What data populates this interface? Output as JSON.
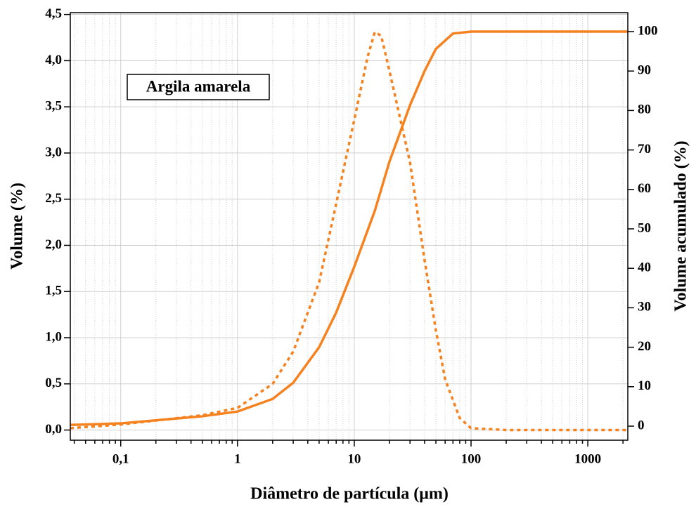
{
  "chart_data": {
    "type": "line",
    "xlabel": "Diâmetro de partícula (μm)",
    "ylabel": "Volume (%)",
    "y2label": "Volume acumulado (%)",
    "annotation": "Argila amarela",
    "log_x": true,
    "grid": true,
    "xlim": [
      0.037,
      2200
    ],
    "xticks": [
      {
        "value": 0.1,
        "label": "0,1"
      },
      1,
      10,
      100,
      1000
    ],
    "ylim": [
      -0.11,
      4.52
    ],
    "yticks": [
      {
        "value": 0,
        "label": "0,0"
      },
      {
        "value": 0.5,
        "label": "0,5"
      },
      {
        "value": 1,
        "label": "1,0"
      },
      {
        "value": 1.5,
        "label": "1,5"
      },
      {
        "value": 2,
        "label": "2,0"
      },
      {
        "value": 2.5,
        "label": "2,5"
      },
      {
        "value": 3,
        "label": "3,0"
      },
      {
        "value": 3.5,
        "label": "3,5"
      },
      {
        "value": 4,
        "label": "4,0"
      },
      {
        "value": 4.5,
        "label": "4,5"
      }
    ],
    "y2lim": [
      -3.56,
      104.8
    ],
    "y2ticks": [
      0,
      10,
      20,
      30,
      40,
      50,
      60,
      70,
      80,
      90,
      100
    ],
    "series": [
      {
        "color": "#f5821f",
        "style": "dotted",
        "axis": "y",
        "x": [
          0.037,
          0.1,
          0.5,
          1,
          2,
          3,
          5,
          7,
          10,
          13,
          15,
          17,
          20,
          30,
          40,
          50,
          60,
          80,
          100,
          200,
          2200
        ],
        "values": [
          0.02,
          0.06,
          0.16,
          0.24,
          0.5,
          0.85,
          1.6,
          2.45,
          3.36,
          4.04,
          4.31,
          4.27,
          3.89,
          2.9,
          1.84,
          1.08,
          0.55,
          0.13,
          0.02,
          0.0,
          0.0
        ]
      },
      {
        "color": "#f5821f",
        "style": "solid",
        "axis": "y2",
        "x": [
          0.037,
          0.1,
          0.5,
          1,
          2,
          3,
          5,
          7,
          10,
          15,
          20,
          30,
          40,
          50,
          70,
          100,
          2200
        ],
        "values": [
          0.3,
          0.7,
          2.5,
          3.7,
          6.9,
          11,
          20,
          28.8,
          40.4,
          54.6,
          67,
          81.3,
          90,
          95.6,
          99.5,
          100,
          100
        ]
      }
    ]
  }
}
